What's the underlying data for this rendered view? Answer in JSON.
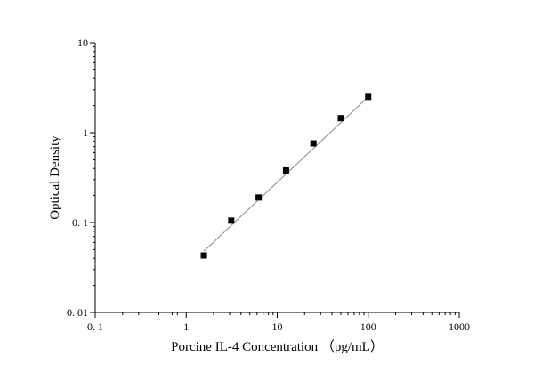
{
  "chart_data": {
    "type": "scatter",
    "title": "",
    "xlabel": "Porcine IL-4 Concentration （pg/mL）",
    "ylabel": "Optical Density",
    "xscale": "log",
    "yscale": "log",
    "xlim": [
      0.1,
      1000
    ],
    "ylim": [
      0.01,
      10
    ],
    "x_ticks": [
      0.1,
      1,
      10,
      100,
      1000
    ],
    "x_tick_labels": [
      "0. 1",
      "1",
      "10",
      "100",
      "1000"
    ],
    "y_ticks": [
      0.01,
      0.1,
      1,
      10
    ],
    "y_tick_labels": [
      "0. 01",
      "0. 1",
      "1",
      "10"
    ],
    "grid": false,
    "legend": "none",
    "marker": "square",
    "marker_color": "#000000",
    "fit_line_color": "#888888",
    "points": [
      {
        "x": 1.5625,
        "y": 0.043
      },
      {
        "x": 3.125,
        "y": 0.105
      },
      {
        "x": 6.25,
        "y": 0.19
      },
      {
        "x": 12.5,
        "y": 0.38
      },
      {
        "x": 25,
        "y": 0.76
      },
      {
        "x": 50,
        "y": 1.45
      },
      {
        "x": 100,
        "y": 2.5
      }
    ],
    "fit_line": [
      {
        "x": 1.5625,
        "y": 0.048
      },
      {
        "x": 100,
        "y": 2.5
      }
    ]
  }
}
